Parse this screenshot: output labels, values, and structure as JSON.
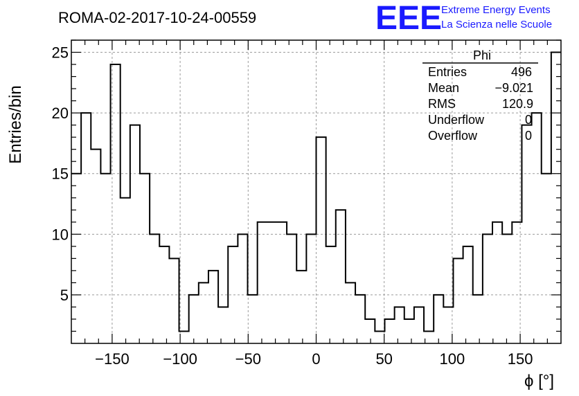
{
  "header": {
    "title": "ROMA-02-2017-10-24-00559",
    "logo_text": "EEE",
    "logo_line1": "Extreme Energy Events",
    "logo_line2": "La Scienza nelle Scuole",
    "logo_color": "#1a1aff"
  },
  "stats": {
    "title": "Phi",
    "rows": [
      {
        "label": "Entries",
        "value": "496"
      },
      {
        "label": "Mean",
        "value": "−9.021"
      },
      {
        "label": "RMS",
        "value": "120.9"
      },
      {
        "label": "Underflow",
        "value": "0"
      },
      {
        "label": "Overflow",
        "value": "0"
      }
    ]
  },
  "chart_data": {
    "type": "bar",
    "histogram": "step",
    "bin_edges_start": -180,
    "bin_width": 7.2,
    "values": [
      15,
      20,
      17,
      15,
      24,
      13,
      19,
      15,
      10,
      9,
      8,
      2,
      5,
      6,
      7,
      4,
      9,
      10,
      5,
      11,
      11,
      11,
      10,
      7,
      10,
      18,
      9,
      12,
      6,
      5,
      3,
      2,
      3,
      4,
      3,
      4,
      2,
      5,
      4,
      8,
      9,
      5,
      10,
      11,
      10,
      11,
      19,
      20,
      15,
      25
    ],
    "xlim": [
      -180,
      180
    ],
    "ylim": [
      1,
      26
    ],
    "xticks": [
      -150,
      -100,
      -50,
      0,
      50,
      100,
      150
    ],
    "xtick_labels": [
      "−150",
      "−100",
      "−50",
      "0",
      "50",
      "100",
      "150"
    ],
    "yticks": [
      5,
      10,
      15,
      20,
      25
    ],
    "ytick_labels": [
      "5",
      "10",
      "15",
      "20",
      "25"
    ],
    "xlabel": "ϕ [°]",
    "ylabel": "Entries/bin",
    "grid": true,
    "legend": "top-right"
  }
}
